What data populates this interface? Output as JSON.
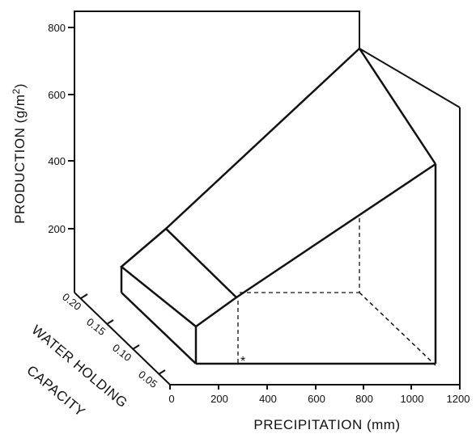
{
  "chart_data": {
    "type": "surface-3d",
    "title": "",
    "ylabel": "PRODUCTION (g/m²)",
    "ylabel_parts": {
      "main": "PRODUCTION (g/m",
      "sup": "2",
      "close": ")"
    },
    "xlabel": "PRECIPITATION (mm)",
    "zlabel": "WATER HOLDING CAPACITY",
    "zlabel_lines": [
      "WATER HOLDING",
      "CAPACITY"
    ],
    "y_ticks": [
      "200",
      "400",
      "600",
      "800"
    ],
    "x_ticks": [
      "0",
      "200",
      "400",
      "600",
      "800",
      "1000",
      "1200"
    ],
    "z_ticks": [
      "0.05",
      "0.10",
      "0.15",
      "0.20"
    ],
    "ylim": [
      0,
      850
    ],
    "xlim": [
      0,
      1200
    ],
    "zlim": [
      0.0,
      0.22
    ],
    "annotations": [
      "*"
    ],
    "surface": {
      "description_points": [
        {
          "precipitation": 100,
          "whc": 0.02,
          "production": 100
        },
        {
          "precipitation": 100,
          "whc": 0.22,
          "production": 100
        },
        {
          "precipitation": 300,
          "whc": 0.02,
          "production": 110
        },
        {
          "precipitation": 300,
          "whc": 0.22,
          "production": 200
        },
        {
          "precipitation": 1100,
          "whc": 0.02,
          "production": 390
        },
        {
          "precipitation": 1100,
          "whc": 0.22,
          "production": 740
        }
      ]
    },
    "marker": {
      "precipitation": 300,
      "whc": 0.02,
      "label": "*"
    }
  }
}
